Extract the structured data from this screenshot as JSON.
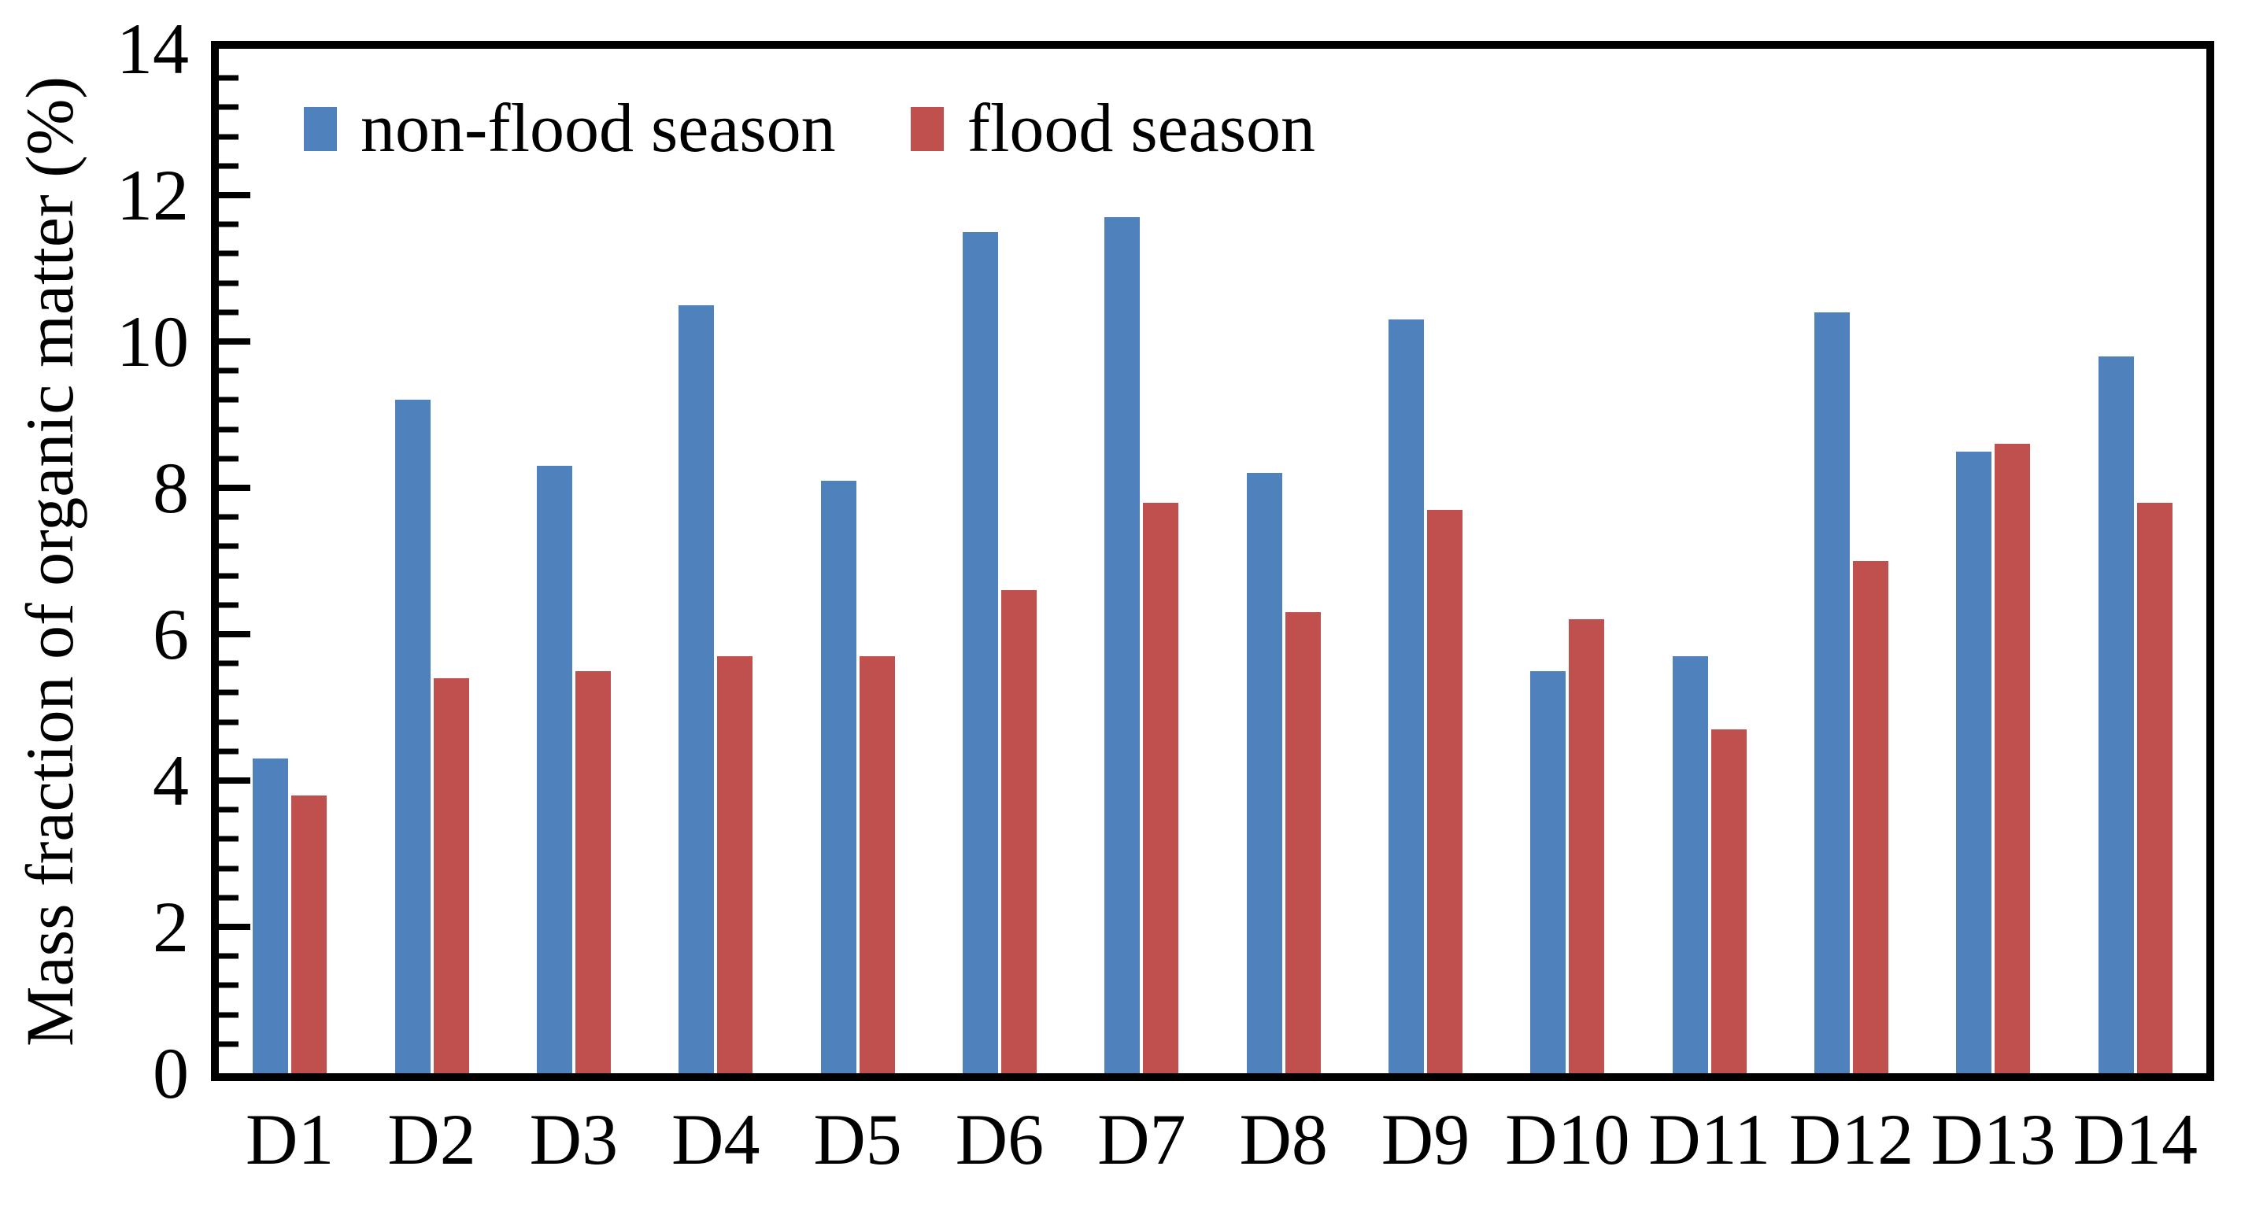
{
  "figure": {
    "background": "#ffffff",
    "axis_color": "#000000"
  },
  "chart_data": {
    "type": "bar",
    "title": "",
    "xlabel": "",
    "ylabel": "Mass fraction of organic matter (%)",
    "categories": [
      "D1",
      "D2",
      "D3",
      "D4",
      "D5",
      "D6",
      "D7",
      "D8",
      "D9",
      "D10",
      "D11",
      "D12",
      "D13",
      "D14"
    ],
    "series": [
      {
        "name": "non-flood season",
        "color": "#4F81BD",
        "values": [
          4.3,
          9.2,
          8.3,
          10.5,
          8.1,
          11.5,
          11.7,
          8.2,
          10.3,
          5.5,
          5.7,
          10.4,
          8.5,
          9.8
        ]
      },
      {
        "name": "flood season",
        "color": "#C0504D",
        "values": [
          3.8,
          5.4,
          5.5,
          5.7,
          5.7,
          6.6,
          7.8,
          6.3,
          7.7,
          6.2,
          4.7,
          7.0,
          8.6,
          7.8
        ]
      }
    ],
    "ylim": [
      0,
      14
    ],
    "ytick_step": 2,
    "minor_tick_step": 0.4,
    "ytick_labels": [
      "0",
      "2",
      "4",
      "6",
      "8",
      "10",
      "12",
      "14"
    ],
    "grid": false,
    "legend_position": "inside-top-left",
    "tick_direction": "inside"
  }
}
